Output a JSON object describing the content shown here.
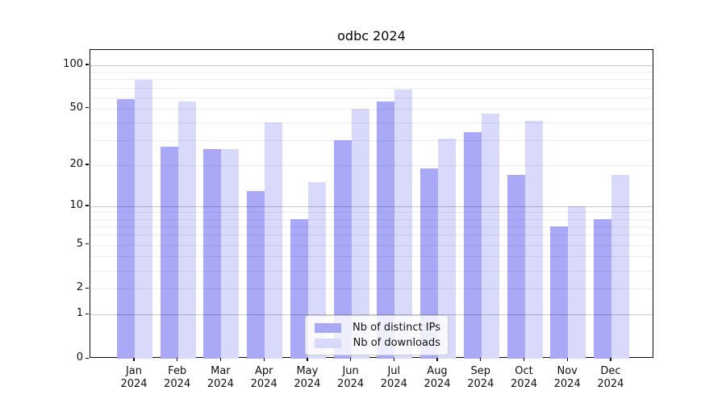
{
  "title": "odbc 2024",
  "chart_data": {
    "type": "bar",
    "title": "odbc 2024",
    "categories": [
      "Jan 2024",
      "Feb 2024",
      "Mar 2024",
      "Apr 2024",
      "May 2024",
      "Jun 2024",
      "Jul 2024",
      "Aug 2024",
      "Sep 2024",
      "Oct 2024",
      "Nov 2024",
      "Dec 2024"
    ],
    "series": [
      {
        "name": "Nb of distinct IPs",
        "color": "#a9a9f8",
        "values": [
          58,
          27,
          26,
          13,
          8,
          30,
          56,
          19,
          34,
          17,
          7,
          8
        ]
      },
      {
        "name": "Nb of downloads",
        "color": "#d9d9fb",
        "values": [
          79,
          56,
          26,
          40,
          15,
          50,
          68,
          31,
          46,
          41,
          10,
          17
        ]
      }
    ],
    "yscale": "log1p",
    "yticks": [
      0,
      1,
      2,
      5,
      10,
      20,
      50,
      100
    ],
    "ytick_labels": [
      "0",
      "1",
      "2",
      "5",
      "10",
      "20",
      "50",
      "100"
    ],
    "minor_gridlines": [
      2,
      3,
      4,
      5,
      6,
      7,
      8,
      9,
      20,
      30,
      40,
      50,
      60,
      70,
      80,
      90
    ],
    "major_gridlines": [
      1,
      10,
      100
    ],
    "ylim": [
      0,
      127
    ],
    "xlabel": "",
    "ylabel": "",
    "grid": true,
    "legend_position": "lower center",
    "axis_color": "#0a0a0a"
  }
}
